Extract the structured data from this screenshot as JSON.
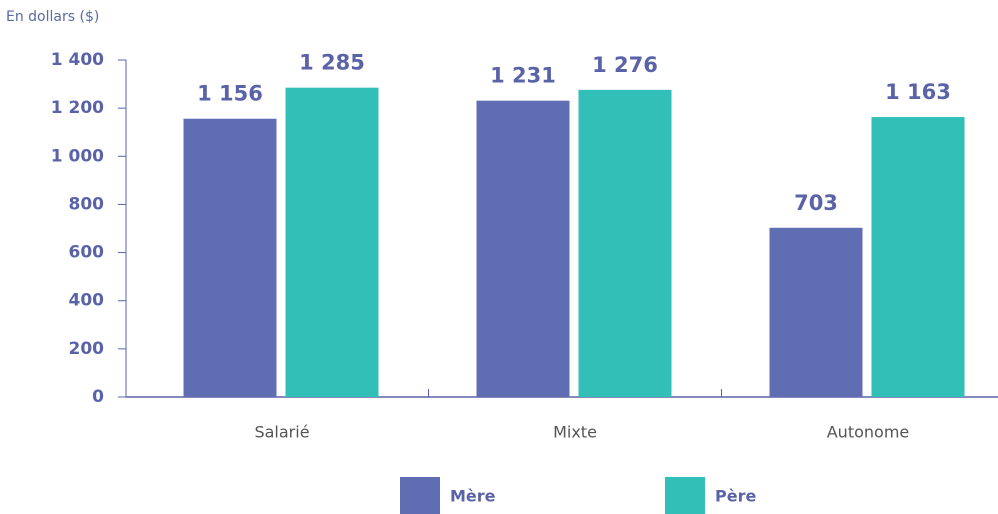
{
  "chart_data": {
    "type": "bar",
    "y_axis_label": "En dollars ($)",
    "categories": [
      "Salarié",
      "Mixte",
      "Autonome"
    ],
    "series": [
      {
        "name": "Mère",
        "color": "#5f6db3",
        "values": [
          1156,
          1231,
          703
        ],
        "value_labels": [
          "1 156",
          "1 231",
          "703"
        ]
      },
      {
        "name": "Père",
        "color": "#31bfb8",
        "values": [
          1285,
          1276,
          1163
        ],
        "value_labels": [
          "1 285",
          "1 276",
          "1 163"
        ]
      }
    ],
    "ylim": [
      0,
      1400
    ],
    "yticks": [
      0,
      200,
      400,
      600,
      800,
      {
        "value": 1000,
        "label": "1 000"
      },
      {
        "value": 1200,
        "label": "1 200"
      },
      {
        "value": 1400,
        "label": "1 400"
      }
    ],
    "legend": "bottom"
  }
}
